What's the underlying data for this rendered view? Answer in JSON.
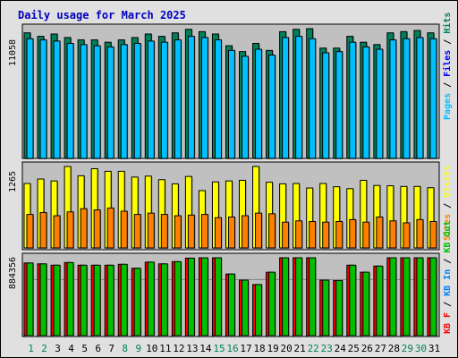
{
  "chart_data": {
    "type": "bar",
    "title": "Daily usage for March 2025",
    "categories": [
      "1",
      "2",
      "3",
      "4",
      "5",
      "6",
      "7",
      "8",
      "9",
      "10",
      "11",
      "12",
      "13",
      "14",
      "15",
      "16",
      "17",
      "18",
      "19",
      "20",
      "21",
      "22",
      "23",
      "24",
      "25",
      "26",
      "27",
      "28",
      "29",
      "30",
      "31"
    ],
    "weekend_days": [
      "1",
      "2",
      "8",
      "9",
      "15",
      "16",
      "22",
      "23",
      "29",
      "30"
    ],
    "panels": [
      {
        "name": "hits-files-pages",
        "max_label": "11058",
        "ymax": 11058,
        "series": [
          {
            "name": "Hits",
            "color": "#00805c",
            "values": [
              10700,
              10400,
              10600,
              10300,
              10100,
              10100,
              9900,
              10100,
              10300,
              10600,
              10400,
              10700,
              11000,
              10800,
              10600,
              9600,
              9100,
              9800,
              9200,
              10800,
              11000,
              11058,
              9400,
              9400,
              10400,
              9900,
              9700,
              10700,
              10800,
              10900,
              10700
            ]
          },
          {
            "name": "Files",
            "color": "#0000ff",
            "values": [
              10200,
              10100,
              10000,
              9800,
              9700,
              9600,
              9500,
              9700,
              9800,
              10000,
              9900,
              10100,
              10400,
              10300,
              10100,
              9200,
              8700,
              9300,
              8800,
              10300,
              10400,
              10200,
              9000,
              9100,
              9900,
              9500,
              9300,
              10100,
              10200,
              10300,
              10200
            ]
          },
          {
            "name": "Pages",
            "color": "#00c0ff",
            "values": [
              10200,
              10100,
              10000,
              9800,
              9700,
              9600,
              9500,
              9700,
              9800,
              10000,
              9900,
              10100,
              10400,
              10300,
              10100,
              9200,
              8700,
              9300,
              8800,
              10300,
              10400,
              10200,
              9000,
              9100,
              9900,
              9500,
              9300,
              10100,
              10200,
              10300,
              10200
            ]
          }
        ]
      },
      {
        "name": "visits-sites",
        "max_label": "1265",
        "ymax": 1265,
        "series": [
          {
            "name": "Visits",
            "color": "#ffff00",
            "values": [
              1000,
              1070,
              1040,
              1265,
              1120,
              1230,
              1190,
              1190,
              1100,
              1115,
              1060,
              995,
              1110,
              890,
              1025,
              1040,
              1050,
              1265,
              1020,
              995,
              1000,
              930,
              1000,
              950,
              920,
              1050,
              970,
              965,
              955,
              955,
              935
            ]
          },
          {
            "name": "Sites",
            "color": "#ff8000",
            "values": [
              520,
              550,
              500,
              560,
              610,
              590,
              620,
              570,
              520,
              540,
              520,
              500,
              510,
              520,
              470,
              480,
              500,
              540,
              530,
              400,
              420,
              410,
              400,
              410,
              440,
              400,
              480,
              420,
              390,
              440,
              410
            ]
          }
        ]
      },
      {
        "name": "kbytes",
        "max_label": "884356",
        "ymax": 884356,
        "series": [
          {
            "name": "KB F",
            "color": "#ff0000",
            "values": [
              825000,
              815000,
              800000,
              830000,
              800000,
              800000,
              800000,
              810000,
              765000,
              835000,
              815000,
              840000,
              880000,
              884356,
              884356,
              700000,
              630000,
              580000,
              720000,
              884356,
              884356,
              884356,
              630000,
              625000,
              800000,
              720000,
              790000,
              884356,
              884356,
              884356,
              884356
            ]
          },
          {
            "name": "KB In",
            "color": "#0080ff",
            "values": [
              0,
              0,
              0,
              0,
              0,
              0,
              0,
              0,
              0,
              0,
              0,
              0,
              0,
              0,
              0,
              0,
              0,
              0,
              0,
              0,
              0,
              0,
              0,
              0,
              0,
              0,
              0,
              0,
              0,
              0,
              0
            ]
          },
          {
            "name": "KB Out",
            "color": "#00c000",
            "values": [
              825000,
              815000,
              800000,
              830000,
              800000,
              800000,
              800000,
              810000,
              765000,
              835000,
              815000,
              840000,
              880000,
              884356,
              884356,
              700000,
              630000,
              580000,
              720000,
              884356,
              884356,
              884356,
              630000,
              625000,
              800000,
              720000,
              790000,
              884356,
              884356,
              884356,
              884356
            ]
          }
        ]
      }
    ],
    "legend_position": "right-vertical"
  }
}
